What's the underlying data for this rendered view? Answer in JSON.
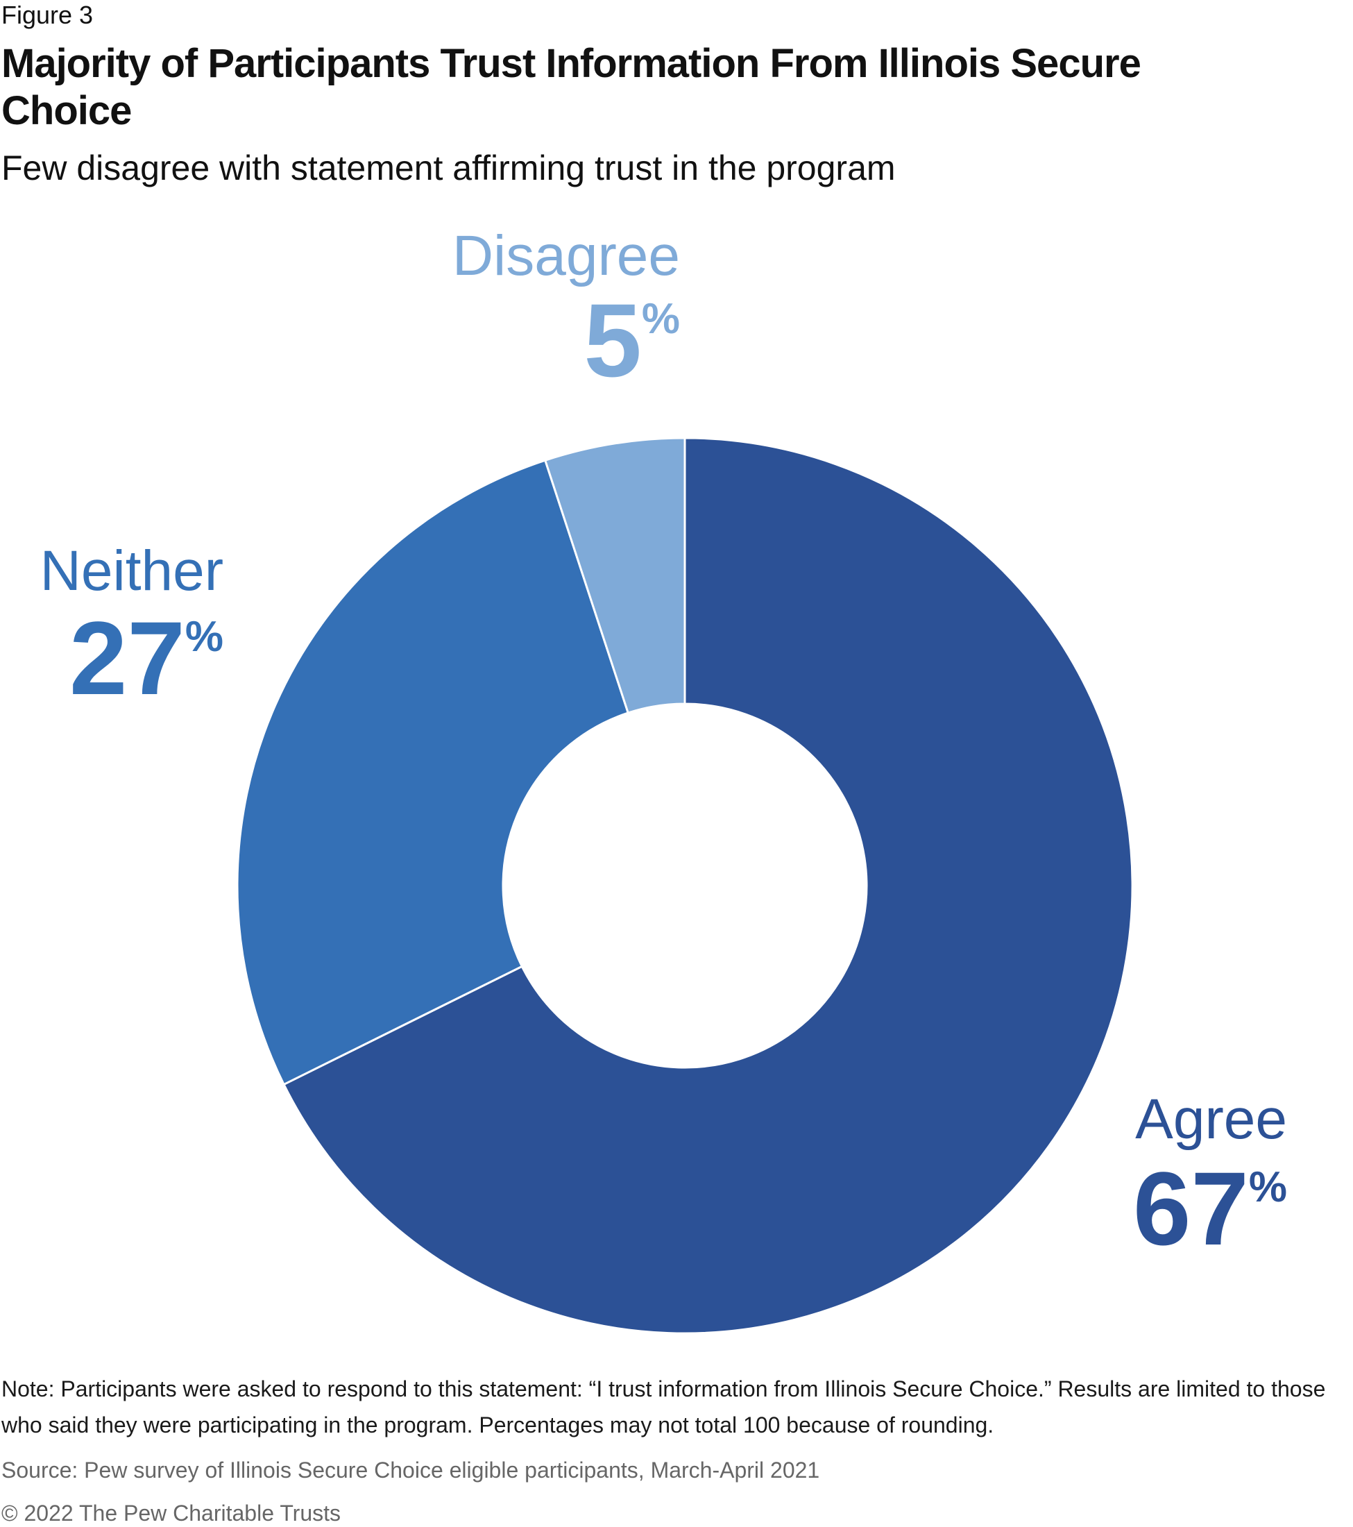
{
  "figure_label": "Figure 3",
  "title": "Majority of Participants Trust Information From Illinois Secure Choice",
  "subtitle": "Few disagree with statement affirming trust in the program",
  "chart_data": {
    "type": "pie",
    "donut": true,
    "slices": [
      {
        "label": "Agree",
        "value": 67,
        "value_label": "67",
        "pct": "%",
        "color": "#2c5196"
      },
      {
        "label": "Neither",
        "value": 27,
        "value_label": "27",
        "pct": "%",
        "color": "#3470b6"
      },
      {
        "label": "Disagree",
        "value": 5,
        "value_label": "5",
        "pct": "%",
        "color": "#7faad8"
      }
    ]
  },
  "note": "Note: Participants were asked to respond to this statement: “I trust information from Illinois Secure Choice.” Results are limited to those who said they were participating in the program. Percentages may not total 100 because of rounding.",
  "source": "Source: Pew survey of Illinois Secure Choice eligible participants, March-April 2021",
  "copyright": "© 2022 The Pew Charitable Trusts"
}
